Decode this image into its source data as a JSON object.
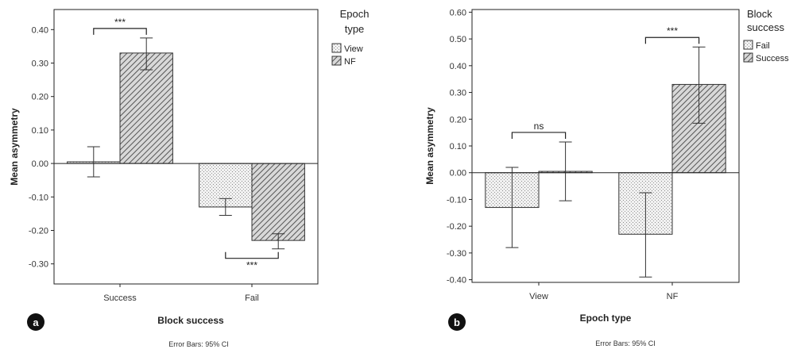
{
  "chart_data": [
    {
      "type": "bar",
      "panel_label": "a",
      "xlabel": "Block success",
      "ylabel": "Mean asymmetry",
      "ylim": [
        -0.36,
        0.46
      ],
      "yticks": [
        0.4,
        0.3,
        0.2,
        0.1,
        0.0,
        -0.1,
        -0.2,
        -0.3
      ],
      "categories": [
        "Success",
        "Fail"
      ],
      "legend": {
        "title_lines": [
          "Epoch",
          "type"
        ],
        "position": "right"
      },
      "series": [
        {
          "name": "View",
          "pattern": "dots",
          "values": [
            0.005,
            -0.13
          ],
          "ci_low": [
            -0.04,
            -0.155
          ],
          "ci_high": [
            0.05,
            -0.105
          ]
        },
        {
          "name": "NF",
          "pattern": "hatch",
          "values": [
            0.33,
            -0.23
          ],
          "ci_low": [
            0.28,
            -0.255
          ],
          "ci_high": [
            0.375,
            -0.21
          ]
        }
      ],
      "annotations": [
        {
          "text": "***",
          "category": 0,
          "side": "above"
        },
        {
          "text": "***",
          "category": 1,
          "side": "below"
        }
      ],
      "footnote": "Error Bars: 95% CI"
    },
    {
      "type": "bar",
      "panel_label": "b",
      "xlabel": "Epoch type",
      "ylabel": "Mean asymmetry",
      "ylim": [
        -0.41,
        0.61
      ],
      "yticks": [
        0.6,
        0.5,
        0.4,
        0.3,
        0.2,
        0.1,
        0.0,
        -0.1,
        -0.2,
        -0.3,
        -0.4
      ],
      "categories": [
        "View",
        "NF"
      ],
      "legend": {
        "title_lines": [
          "Block",
          "success"
        ],
        "position": "right"
      },
      "series": [
        {
          "name": "Fail",
          "pattern": "dots",
          "values": [
            -0.13,
            -0.23
          ],
          "ci_low": [
            -0.28,
            -0.39
          ],
          "ci_high": [
            0.02,
            -0.075
          ]
        },
        {
          "name": "Success",
          "pattern": "hatch",
          "values": [
            0.005,
            0.33
          ],
          "ci_low": [
            -0.105,
            0.185
          ],
          "ci_high": [
            0.115,
            0.47
          ]
        }
      ],
      "annotations": [
        {
          "text": "ns",
          "category": 0,
          "side": "above"
        },
        {
          "text": "***",
          "category": 1,
          "side": "above"
        }
      ],
      "footnote": "Error Bars: 95% CI"
    }
  ]
}
